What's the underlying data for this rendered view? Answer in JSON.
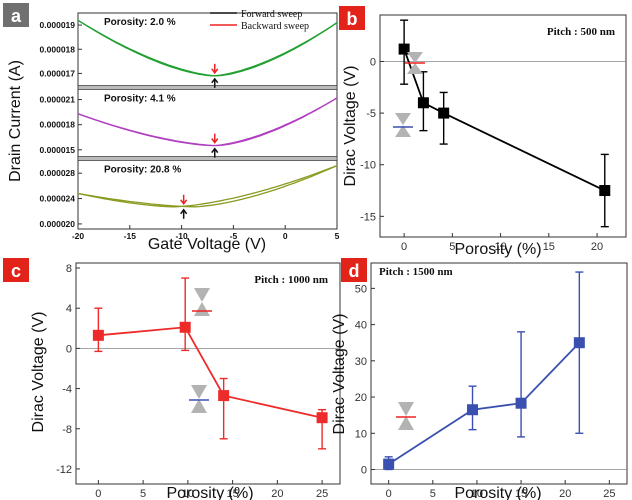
{
  "panels": [
    {
      "letter": "a",
      "xlabel": "Gate Voltage (V)",
      "ylabel": "Drain Current (A)",
      "xlim": [
        -20,
        5
      ],
      "xticks": [
        "-20",
        "-15",
        "-10",
        "-5",
        "0",
        "5"
      ],
      "xtick_values": [
        -20,
        -15,
        -10,
        -5,
        0,
        5
      ],
      "legend": [
        {
          "label": "Forward sweep",
          "color": "#111111"
        },
        {
          "label": "Backward sweep",
          "color": "#ee2222"
        }
      ]
    },
    {
      "letter": "b",
      "annotation": "Pitch : 500 nm"
    },
    {
      "letter": "c",
      "annotation": "Pitch : 1000 nm"
    },
    {
      "letter": "d",
      "annotation": "Pitch : 1500 nm"
    }
  ],
  "chart_data": [
    {
      "type": "line",
      "panel": "a",
      "subplots": [
        {
          "label": "Porosity: 2.0 %",
          "color": "#22a032",
          "ylim": [
            1.65e-05,
            1.95e-05
          ],
          "yticks": [
            "0.000019",
            "0.000018",
            "0.000017"
          ],
          "ytick_values": [
            1.9e-05,
            1.8e-05,
            1.7e-05
          ],
          "dirac_x": -6.8,
          "min_y": 1.69e-05,
          "edge_left_y": 1.92e-05,
          "edge_right_y": 1.91e-05,
          "series": [
            {
              "name": "Forward sweep",
              "color": "#22a032",
              "offset_x": -0.2
            },
            {
              "name": "Backward sweep",
              "color": "#22a032",
              "offset_x": 0.2
            }
          ]
        },
        {
          "label": "Porosity: 4.1 %",
          "color": "#b040c0",
          "ylim": [
            1.42e-05,
            2.22e-05
          ],
          "yticks": [
            "0.000021",
            "0.000018",
            "0.000015"
          ],
          "ytick_values": [
            2.1e-05,
            1.8e-05,
            1.5e-05
          ],
          "dirac_x": -6.8,
          "min_y": 1.55e-05,
          "edge_left_y": 1.93e-05,
          "edge_right_y": 2.12e-05,
          "series": [
            {
              "name": "Forward sweep",
              "color": "#b040c0",
              "offset_x": -0.2
            },
            {
              "name": "Backward sweep",
              "color": "#b040c0",
              "offset_x": 0.2
            }
          ]
        },
        {
          "label": "Porosity: 20.8 %",
          "color": "#8a9a20",
          "ylim": [
            1.92e-05,
            3e-05
          ],
          "yticks": [
            "0.000028",
            "0.000024",
            "0.000020"
          ],
          "ytick_values": [
            2.8e-05,
            2.4e-05,
            2e-05
          ],
          "dirac_x": -9.8,
          "min_y": 2.27e-05,
          "edge_left_y": 2.48e-05,
          "edge_right_y": 2.92e-05,
          "series": [
            {
              "name": "Forward sweep",
              "color": "#8a9a20",
              "offset_x": -1.0
            },
            {
              "name": "Backward sweep",
              "color": "#8a9a20",
              "offset_x": 1.0
            }
          ]
        }
      ]
    },
    {
      "type": "scatter",
      "panel": "b",
      "xlabel": "Porosity (%)",
      "ylabel": "Dirac Voltage (V)",
      "xlim": [
        -2.5,
        23
      ],
      "ylim": [
        -17,
        4.5
      ],
      "xticks": [
        "0",
        "5",
        "10",
        "15",
        "20"
      ],
      "xtick_values": [
        0,
        5,
        10,
        15,
        20
      ],
      "yticks": [
        "0",
        "-5",
        "-10",
        "-15"
      ],
      "ytick_values": [
        0,
        -5,
        -10,
        -15
      ],
      "color": "#000000",
      "x": [
        0,
        2,
        4.1,
        20.8
      ],
      "y": [
        1.2,
        -4.0,
        -5.0,
        -12.5
      ],
      "err_low": [
        3.4,
        2.7,
        3.0,
        3.5
      ],
      "err_high": [
        2.8,
        3.0,
        2.0,
        3.5
      ],
      "zero_line": true
    },
    {
      "type": "scatter",
      "panel": "c",
      "xlabel": "Porosity (%)",
      "ylabel": "Dirac Voltage (V)",
      "xlim": [
        -2.5,
        27
      ],
      "ylim": [
        -13.5,
        8.5
      ],
      "xticks": [
        "0",
        "5",
        "10",
        "15",
        "20",
        "25"
      ],
      "xtick_values": [
        0,
        5,
        10,
        15,
        20,
        25
      ],
      "yticks": [
        "8",
        "4",
        "0",
        "-4",
        "-8",
        "-12"
      ],
      "ytick_values": [
        8,
        4,
        0,
        -4,
        -8,
        -12
      ],
      "color": "#ee2b2b",
      "x": [
        0,
        9.7,
        14,
        25
      ],
      "y": [
        1.3,
        2.1,
        -4.7,
        -6.9
      ],
      "err_low": [
        1.6,
        2.3,
        4.3,
        3.1
      ],
      "err_high": [
        2.7,
        4.9,
        1.7,
        0.8
      ],
      "zero_line": true
    },
    {
      "type": "scatter",
      "panel": "d",
      "xlabel": "Porosity (%)",
      "ylabel": "Dirac Voltage (V)",
      "xlim": [
        -2,
        27
      ],
      "ylim": [
        -4,
        57
      ],
      "xticks": [
        "0",
        "5",
        "10",
        "15",
        "20",
        "25"
      ],
      "xtick_values": [
        0,
        5,
        10,
        15,
        20,
        25
      ],
      "yticks": [
        "0",
        "10",
        "20",
        "30",
        "40",
        "50"
      ],
      "ytick_values": [
        0,
        10,
        20,
        30,
        40,
        50
      ],
      "color": "#3a50b0",
      "x": [
        0,
        9.5,
        15,
        21.6
      ],
      "y": [
        1.5,
        16.5,
        18.3,
        35
      ],
      "err_low": [
        1.5,
        5.5,
        9.3,
        25
      ],
      "err_high": [
        2.0,
        6.5,
        19.7,
        19.5
      ],
      "zero_line": true
    }
  ]
}
